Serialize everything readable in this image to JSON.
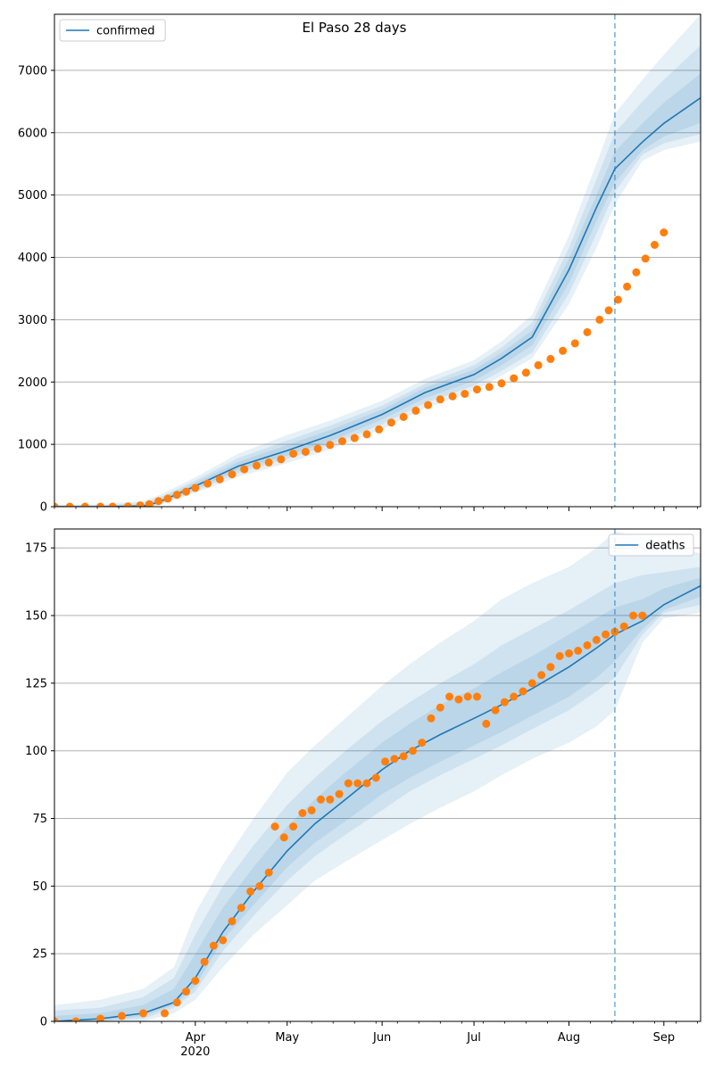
{
  "title": "El Paso 28 days",
  "colors": {
    "model": "#1f77b4",
    "observed": "#ff7f0e",
    "band": "#1f77b4",
    "grid": "#b0b0b0",
    "vline": "#1f77b4"
  },
  "x_axis": {
    "start": "2020-02-15",
    "end": "2020-09-13",
    "month_ticks": [
      {
        "date": "2020-04-01",
        "label": "Apr",
        "sublabel": "2020"
      },
      {
        "date": "2020-05-01",
        "label": "May",
        "sublabel": ""
      },
      {
        "date": "2020-06-01",
        "label": "Jun",
        "sublabel": ""
      },
      {
        "date": "2020-07-01",
        "label": "Jul",
        "sublabel": ""
      },
      {
        "date": "2020-08-01",
        "label": "Aug",
        "sublabel": ""
      },
      {
        "date": "2020-09-01",
        "label": "Sep",
        "sublabel": ""
      }
    ],
    "forecast_start": "2020-08-16"
  },
  "chart_data": [
    {
      "type": "line",
      "legend": "confirmed",
      "legend_position": "upper-left",
      "ylim": [
        0,
        7900
      ],
      "yticks": [
        0,
        1000,
        2000,
        3000,
        4000,
        5000,
        6000,
        7000
      ],
      "grid": true,
      "model": {
        "x": [
          "2020-02-15",
          "2020-03-01",
          "2020-03-15",
          "2020-03-20",
          "2020-04-01",
          "2020-04-15",
          "2020-05-01",
          "2020-05-15",
          "2020-06-01",
          "2020-06-15",
          "2020-07-01",
          "2020-07-10",
          "2020-07-20",
          "2020-08-01",
          "2020-08-10",
          "2020-08-16",
          "2020-08-25",
          "2020-09-01",
          "2020-09-13"
        ],
        "y": [
          0,
          0,
          10,
          70,
          330,
          650,
          900,
          1140,
          1480,
          1830,
          2120,
          2380,
          2720,
          3800,
          4800,
          5420,
          5850,
          6150,
          6560
        ]
      },
      "bands": [
        {
          "upper": [
            30,
            40,
            90,
            180,
            470,
            850,
            1150,
            1380,
            1700,
            2050,
            2350,
            2650,
            3080,
            4350,
            5500,
            6300,
            6850,
            7250,
            7900
          ],
          "lower": [
            0,
            0,
            0,
            20,
            220,
            480,
            700,
            920,
            1240,
            1580,
            1860,
            2100,
            2380,
            3250,
            4150,
            4850,
            5550,
            5720,
            5860
          ]
        },
        {
          "upper": [
            20,
            25,
            60,
            140,
            420,
            780,
            1060,
            1300,
            1620,
            1970,
            2270,
            2550,
            2950,
            4150,
            5250,
            6000,
            6500,
            6850,
            7400
          ],
          "lower": [
            0,
            0,
            0,
            35,
            250,
            540,
            770,
            990,
            1320,
            1660,
            1940,
            2180,
            2470,
            3420,
            4380,
            5050,
            5650,
            5830,
            5980
          ]
        },
        {
          "upper": [
            10,
            12,
            35,
            110,
            380,
            720,
            990,
            1230,
            1560,
            1910,
            2200,
            2470,
            2830,
            3980,
            5000,
            5700,
            6150,
            6480,
            6950
          ],
          "lower": [
            0,
            0,
            0,
            50,
            280,
            590,
            820,
            1050,
            1400,
            1740,
            2020,
            2270,
            2590,
            3590,
            4580,
            5200,
            5720,
            5940,
            6160
          ]
        }
      ],
      "observed": [
        [
          "2020-02-15",
          0
        ],
        [
          "2020-02-20",
          0
        ],
        [
          "2020-02-25",
          0
        ],
        [
          "2020-03-01",
          0
        ],
        [
          "2020-03-05",
          0
        ],
        [
          "2020-03-10",
          5
        ],
        [
          "2020-03-14",
          20
        ],
        [
          "2020-03-17",
          40
        ],
        [
          "2020-03-20",
          90
        ],
        [
          "2020-03-23",
          130
        ],
        [
          "2020-03-26",
          190
        ],
        [
          "2020-03-29",
          240
        ],
        [
          "2020-04-01",
          300
        ],
        [
          "2020-04-05",
          370
        ],
        [
          "2020-04-09",
          440
        ],
        [
          "2020-04-13",
          520
        ],
        [
          "2020-04-17",
          600
        ],
        [
          "2020-04-21",
          660
        ],
        [
          "2020-04-25",
          710
        ],
        [
          "2020-04-29",
          760
        ],
        [
          "2020-05-03",
          850
        ],
        [
          "2020-05-07",
          880
        ],
        [
          "2020-05-11",
          930
        ],
        [
          "2020-05-15",
          990
        ],
        [
          "2020-05-19",
          1050
        ],
        [
          "2020-05-23",
          1100
        ],
        [
          "2020-05-27",
          1160
        ],
        [
          "2020-05-31",
          1240
        ],
        [
          "2020-06-04",
          1350
        ],
        [
          "2020-06-08",
          1440
        ],
        [
          "2020-06-12",
          1540
        ],
        [
          "2020-06-16",
          1630
        ],
        [
          "2020-06-20",
          1720
        ],
        [
          "2020-06-24",
          1770
        ],
        [
          "2020-06-28",
          1810
        ],
        [
          "2020-07-02",
          1880
        ],
        [
          "2020-07-06",
          1920
        ],
        [
          "2020-07-10",
          1980
        ],
        [
          "2020-07-14",
          2060
        ],
        [
          "2020-07-18",
          2150
        ],
        [
          "2020-07-22",
          2270
        ],
        [
          "2020-07-26",
          2370
        ],
        [
          "2020-07-30",
          2500
        ],
        [
          "2020-08-03",
          2620
        ],
        [
          "2020-08-07",
          2800
        ],
        [
          "2020-08-11",
          3000
        ],
        [
          "2020-08-14",
          3150
        ],
        [
          "2020-08-17",
          3320
        ],
        [
          "2020-08-20",
          3530
        ],
        [
          "2020-08-23",
          3760
        ],
        [
          "2020-08-26",
          3980
        ],
        [
          "2020-08-29",
          4200
        ],
        [
          "2020-09-01",
          4400
        ]
      ]
    },
    {
      "type": "line",
      "legend": "deaths",
      "legend_position": "upper-right",
      "ylim": [
        0,
        182
      ],
      "yticks": [
        0,
        25,
        50,
        75,
        100,
        125,
        150,
        175
      ],
      "grid": true,
      "model": {
        "x": [
          "2020-02-15",
          "2020-03-01",
          "2020-03-15",
          "2020-03-25",
          "2020-04-01",
          "2020-04-10",
          "2020-04-20",
          "2020-05-01",
          "2020-05-10",
          "2020-05-20",
          "2020-06-01",
          "2020-06-10",
          "2020-06-20",
          "2020-07-01",
          "2020-07-10",
          "2020-07-20",
          "2020-08-01",
          "2020-08-10",
          "2020-08-16",
          "2020-08-25",
          "2020-09-01",
          "2020-09-13"
        ],
        "y": [
          0,
          1,
          3,
          7,
          16,
          33,
          48,
          63,
          73,
          82,
          93,
          100,
          106,
          112,
          117,
          123,
          131,
          138,
          143,
          148,
          154,
          161
        ]
      },
      "bands": [
        {
          "upper": [
            6,
            8,
            12,
            20,
            40,
            58,
            75,
            92,
            102,
            112,
            124,
            132,
            140,
            148,
            156,
            162,
            168,
            175,
            181,
            179,
            176,
            173
          ],
          "lower": [
            0,
            0,
            0,
            3,
            8,
            20,
            32,
            43,
            52,
            59,
            67,
            73,
            79,
            85,
            91,
            97,
            103,
            109,
            115,
            140,
            149,
            151
          ]
        },
        {
          "upper": [
            4,
            5,
            9,
            16,
            32,
            50,
            65,
            80,
            90,
            100,
            111,
            118,
            125,
            132,
            139,
            145,
            152,
            158,
            162,
            165,
            166,
            168
          ],
          "lower": [
            0,
            0,
            1,
            5,
            11,
            26,
            39,
            52,
            61,
            69,
            78,
            85,
            91,
            97,
            102,
            108,
            115,
            122,
            127,
            143,
            151,
            154
          ]
        },
        {
          "upper": [
            2,
            3,
            6,
            12,
            25,
            42,
            57,
            72,
            82,
            92,
            103,
            110,
            117,
            123,
            129,
            135,
            143,
            149,
            153,
            156,
            160,
            164
          ],
          "lower": [
            0,
            0,
            2,
            6,
            13,
            30,
            43,
            57,
            66,
            74,
            84,
            90,
            96,
            102,
            107,
            113,
            120,
            127,
            133,
            145,
            152,
            157
          ]
        }
      ],
      "observed": [
        [
          "2020-02-15",
          0
        ],
        [
          "2020-02-22",
          0
        ],
        [
          "2020-03-01",
          1
        ],
        [
          "2020-03-08",
          2
        ],
        [
          "2020-03-15",
          3
        ],
        [
          "2020-03-22",
          3
        ],
        [
          "2020-03-26",
          7
        ],
        [
          "2020-03-29",
          11
        ],
        [
          "2020-04-01",
          15
        ],
        [
          "2020-04-04",
          22
        ],
        [
          "2020-04-07",
          28
        ],
        [
          "2020-04-10",
          30
        ],
        [
          "2020-04-13",
          37
        ],
        [
          "2020-04-16",
          42
        ],
        [
          "2020-04-19",
          48
        ],
        [
          "2020-04-22",
          50
        ],
        [
          "2020-04-25",
          55
        ],
        [
          "2020-04-27",
          72
        ],
        [
          "2020-04-30",
          68
        ],
        [
          "2020-05-03",
          72
        ],
        [
          "2020-05-06",
          77
        ],
        [
          "2020-05-09",
          78
        ],
        [
          "2020-05-12",
          82
        ],
        [
          "2020-05-15",
          82
        ],
        [
          "2020-05-18",
          84
        ],
        [
          "2020-05-21",
          88
        ],
        [
          "2020-05-24",
          88
        ],
        [
          "2020-05-27",
          88
        ],
        [
          "2020-05-30",
          90
        ],
        [
          "2020-06-02",
          96
        ],
        [
          "2020-06-05",
          97
        ],
        [
          "2020-06-08",
          98
        ],
        [
          "2020-06-11",
          100
        ],
        [
          "2020-06-14",
          103
        ],
        [
          "2020-06-17",
          112
        ],
        [
          "2020-06-20",
          116
        ],
        [
          "2020-06-23",
          120
        ],
        [
          "2020-06-26",
          119
        ],
        [
          "2020-06-29",
          120
        ],
        [
          "2020-07-02",
          120
        ],
        [
          "2020-07-05",
          110
        ],
        [
          "2020-07-08",
          115
        ],
        [
          "2020-07-11",
          118
        ],
        [
          "2020-07-14",
          120
        ],
        [
          "2020-07-17",
          122
        ],
        [
          "2020-07-20",
          125
        ],
        [
          "2020-07-23",
          128
        ],
        [
          "2020-07-26",
          131
        ],
        [
          "2020-07-29",
          135
        ],
        [
          "2020-08-01",
          136
        ],
        [
          "2020-08-04",
          137
        ],
        [
          "2020-08-07",
          139
        ],
        [
          "2020-08-10",
          141
        ],
        [
          "2020-08-13",
          143
        ],
        [
          "2020-08-16",
          144
        ],
        [
          "2020-08-19",
          146
        ],
        [
          "2020-08-22",
          150
        ],
        [
          "2020-08-25",
          150
        ]
      ]
    }
  ]
}
